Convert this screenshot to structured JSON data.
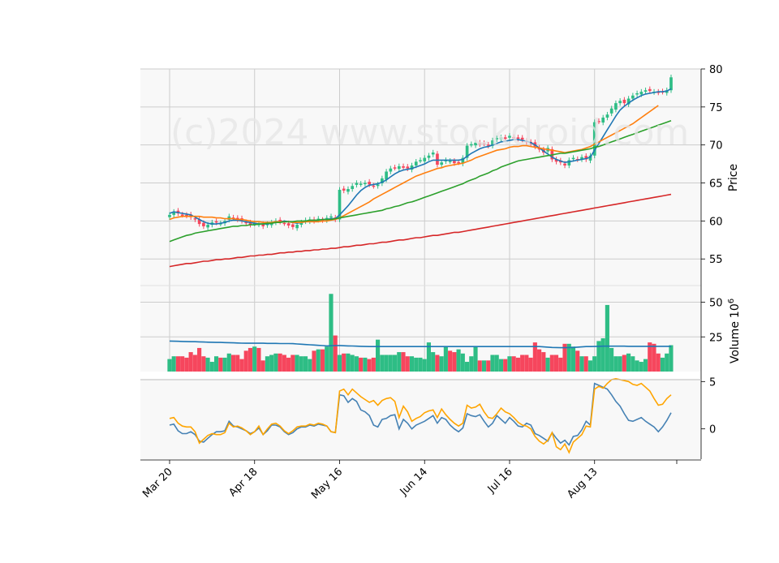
{
  "watermark": "(c)2024 www.stockdroid.com",
  "colors": {
    "up": "#2ebd85",
    "down": "#f6465d",
    "ma1": "#1f77b4",
    "ma2": "#ff7f0e",
    "ma3": "#2ca02c",
    "ma4": "#d62728",
    "macd": "#4682b4",
    "signal": "#ffa500",
    "panel_bg": "#f8f8f8",
    "grid": "#cccccc"
  },
  "chart_data": [
    {
      "type": "candlestick",
      "panel": "price",
      "ylabel": "Price",
      "ylim": [
        51.5,
        80
      ],
      "yticks": [
        55,
        60,
        65,
        70,
        75,
        80
      ],
      "x_tick_labels": [
        {
          "label": "Mar 20",
          "index": 0
        },
        {
          "label": "Apr 18",
          "index": 20
        },
        {
          "label": "May 16",
          "index": 40
        },
        {
          "label": "Jun 14",
          "index": 60
        },
        {
          "label": "Jul 16",
          "index": 80
        },
        {
          "label": "Aug 13",
          "index": 100
        }
      ],
      "grid": true,
      "candles_close": [
        60.8,
        61.2,
        61.0,
        60.8,
        60.7,
        60.5,
        60.2,
        59.6,
        59.3,
        59.5,
        59.8,
        59.8,
        59.7,
        60.0,
        60.6,
        60.4,
        60.2,
        60.0,
        59.8,
        59.5,
        59.7,
        59.6,
        59.3,
        59.6,
        59.8,
        60.0,
        59.9,
        59.7,
        59.4,
        59.2,
        59.5,
        59.8,
        60.1,
        60.2,
        60.0,
        60.3,
        60.1,
        60.4,
        60.6,
        60.2,
        64.1,
        64.0,
        64.2,
        64.6,
        65.0,
        64.9,
        65.0,
        64.8,
        64.6,
        64.8,
        65.6,
        66.5,
        66.9,
        67.0,
        67.2,
        67.0,
        66.9,
        67.3,
        67.8,
        68.0,
        68.3,
        68.6,
        69.0,
        67.4,
        67.7,
        68.0,
        67.9,
        67.6,
        67.7,
        68.3,
        69.9,
        70.1,
        70.3,
        70.1,
        70.2,
        69.9,
        70.6,
        70.9,
        71.0,
        70.8,
        71.2,
        71.0,
        70.8,
        70.7,
        70.4,
        70.2,
        69.8,
        69.4,
        69.0,
        69.6,
        68.1,
        67.8,
        67.7,
        67.3,
        68.0,
        68.3,
        68.1,
        68.4,
        68.1,
        68.6,
        73.0,
        73.1,
        73.6,
        74.0,
        74.8,
        75.5,
        75.8,
        75.5,
        76.1,
        76.5,
        76.8,
        77.0,
        77.2,
        77.1,
        77.0,
        76.9,
        77.0,
        77.2,
        78.9
      ],
      "ma_series": [
        {
          "name": "MA1",
          "values": [
            61.0,
            61.2,
            61.1,
            61.0,
            60.9,
            60.8,
            60.5,
            60.2,
            59.9,
            59.7,
            59.6,
            59.6,
            59.7,
            59.8,
            60.0,
            60.1,
            60.1,
            60.0,
            59.9,
            59.8,
            59.7,
            59.6,
            59.6,
            59.6,
            59.7,
            59.8,
            59.9,
            60.0,
            59.9,
            59.8,
            59.7,
            59.8,
            59.9,
            60.0,
            60.0,
            60.1,
            60.2,
            60.2,
            60.3,
            60.3,
            60.8,
            61.4,
            62.0,
            62.7,
            63.4,
            64.0,
            64.4,
            64.7,
            64.8,
            64.9,
            65.1,
            65.4,
            65.8,
            66.2,
            66.5,
            66.7,
            66.8,
            66.9,
            67.1,
            67.3,
            67.5,
            67.8,
            68.0,
            68.0,
            68.0,
            68.0,
            68.0,
            68.0,
            68.0,
            68.1,
            68.5,
            68.9,
            69.2,
            69.5,
            69.7,
            69.8,
            70.0,
            70.2,
            70.4,
            70.5,
            70.6,
            70.7,
            70.7,
            70.6,
            70.5,
            70.3,
            70.0,
            69.6,
            69.2,
            68.8,
            68.4,
            68.1,
            67.9,
            67.7,
            67.8,
            67.9,
            68.0,
            68.1,
            68.2,
            68.4,
            69.3,
            70.2,
            71.1,
            72.0,
            72.9,
            73.8,
            74.6,
            75.1,
            75.5,
            75.9,
            76.2,
            76.5,
            76.7,
            76.8,
            76.9,
            77.0,
            77.0,
            77.1,
            77.4
          ]
        },
        {
          "name": "MA2",
          "values": [
            60.2,
            60.4,
            60.5,
            60.6,
            60.6,
            60.6,
            60.6,
            60.6,
            60.5,
            60.5,
            60.5,
            60.4,
            60.4,
            60.3,
            60.3,
            60.3,
            60.2,
            60.2,
            60.1,
            60.0,
            59.9,
            59.9,
            59.8,
            59.8,
            59.8,
            59.9,
            59.9,
            59.9,
            59.9,
            59.8,
            59.8,
            59.8,
            59.9,
            59.9,
            59.9,
            59.9,
            60.0,
            60.0,
            60.1,
            60.2,
            60.4,
            60.7,
            61.0,
            61.3,
            61.6,
            61.9,
            62.2,
            62.5,
            62.9,
            63.2,
            63.5,
            63.8,
            64.1,
            64.4,
            64.7,
            65.0,
            65.3,
            65.6,
            65.9,
            66.1,
            66.3,
            66.5,
            66.7,
            66.9,
            67.0,
            67.2,
            67.3,
            67.4,
            67.5,
            67.6,
            67.8,
            68.0,
            68.3,
            68.5,
            68.7,
            68.9,
            69.1,
            69.3,
            69.4,
            69.5,
            69.7,
            69.8,
            69.8,
            69.9,
            69.9,
            69.8,
            69.7,
            69.6,
            69.5,
            69.4,
            69.3,
            69.2,
            69.1,
            69.0,
            69.1,
            69.2,
            69.3,
            69.4,
            69.6,
            69.8,
            70.1,
            70.4,
            70.7,
            71.0,
            71.3,
            71.6,
            71.9,
            72.2,
            72.5,
            72.8,
            73.2,
            73.6,
            74.0,
            74.4,
            74.8,
            75.2
          ]
        },
        {
          "name": "MA3",
          "values": [
            57.3,
            57.5,
            57.7,
            57.9,
            58.1,
            58.2,
            58.4,
            58.5,
            58.6,
            58.7,
            58.8,
            58.9,
            59.0,
            59.1,
            59.2,
            59.3,
            59.3,
            59.4,
            59.4,
            59.5,
            59.5,
            59.6,
            59.6,
            59.7,
            59.7,
            59.8,
            59.8,
            59.9,
            59.9,
            59.9,
            60.0,
            60.0,
            60.0,
            60.1,
            60.1,
            60.1,
            60.2,
            60.2,
            60.2,
            60.3,
            60.4,
            60.5,
            60.6,
            60.7,
            60.8,
            60.9,
            61.0,
            61.1,
            61.2,
            61.3,
            61.4,
            61.6,
            61.7,
            61.9,
            62.0,
            62.2,
            62.4,
            62.5,
            62.7,
            62.9,
            63.1,
            63.3,
            63.5,
            63.7,
            63.9,
            64.1,
            64.3,
            64.5,
            64.7,
            64.9,
            65.2,
            65.4,
            65.6,
            65.9,
            66.1,
            66.3,
            66.6,
            66.8,
            67.1,
            67.3,
            67.5,
            67.7,
            67.9,
            68.0,
            68.1,
            68.2,
            68.3,
            68.4,
            68.5,
            68.6,
            68.7,
            68.8,
            68.9,
            68.9,
            69.0,
            69.1,
            69.2,
            69.3,
            69.4,
            69.5,
            69.7,
            69.8,
            70.0,
            70.2,
            70.4,
            70.6,
            70.8,
            71.0,
            71.2,
            71.4,
            71.6,
            71.8,
            72.0,
            72.2,
            72.4,
            72.6,
            72.8,
            73.0,
            73.2
          ]
        },
        {
          "name": "MA4",
          "values": [
            54.0,
            54.1,
            54.2,
            54.3,
            54.4,
            54.4,
            54.5,
            54.6,
            54.7,
            54.7,
            54.8,
            54.9,
            54.9,
            55.0,
            55.0,
            55.1,
            55.2,
            55.2,
            55.3,
            55.4,
            55.4,
            55.5,
            55.5,
            55.6,
            55.6,
            55.7,
            55.8,
            55.8,
            55.9,
            55.9,
            56.0,
            56.0,
            56.1,
            56.1,
            56.2,
            56.2,
            56.3,
            56.3,
            56.4,
            56.4,
            56.5,
            56.6,
            56.6,
            56.7,
            56.8,
            56.8,
            56.9,
            57.0,
            57.0,
            57.1,
            57.2,
            57.2,
            57.3,
            57.4,
            57.5,
            57.5,
            57.6,
            57.7,
            57.8,
            57.8,
            57.9,
            58.0,
            58.1,
            58.1,
            58.2,
            58.3,
            58.4,
            58.5,
            58.5,
            58.6,
            58.7,
            58.8,
            58.9,
            59.0,
            59.1,
            59.2,
            59.3,
            59.4,
            59.5,
            59.6,
            59.7,
            59.8,
            59.9,
            60.0,
            60.1,
            60.2,
            60.3,
            60.4,
            60.5,
            60.6,
            60.7,
            60.8,
            60.9,
            61.0,
            61.1,
            61.2,
            61.3,
            61.4,
            61.5,
            61.6,
            61.7,
            61.8,
            61.9,
            62.0,
            62.1,
            62.2,
            62.3,
            62.4,
            62.5,
            62.6,
            62.7,
            62.8,
            62.9,
            63.0,
            63.1,
            63.2,
            63.3,
            63.4,
            63.5
          ]
        }
      ]
    },
    {
      "type": "bar",
      "panel": "volume",
      "ylabel": "Volume",
      "ylabel_exponent": "10^6",
      "ylim": [
        0,
        62
      ],
      "yticks": [
        25,
        50
      ],
      "values": [
        9,
        11,
        11,
        11,
        10,
        14,
        12,
        17,
        11,
        10,
        7,
        11,
        10,
        10,
        13,
        12,
        12,
        9,
        15,
        17,
        18,
        17,
        8,
        11,
        12,
        13,
        13,
        12,
        10,
        12,
        12,
        11,
        11,
        9,
        15,
        16,
        16,
        18,
        56,
        26,
        12,
        13,
        13,
        12,
        11,
        10,
        10,
        9,
        10,
        23,
        12,
        12,
        12,
        12,
        14,
        14,
        11,
        11,
        10,
        10,
        9,
        21,
        14,
        12,
        11,
        18,
        15,
        14,
        16,
        13,
        7,
        11,
        18,
        8,
        8,
        8,
        12,
        12,
        9,
        9,
        11,
        11,
        10,
        12,
        12,
        10,
        21,
        16,
        14,
        10,
        12,
        12,
        10,
        20,
        20,
        18,
        15,
        11,
        11,
        8,
        11,
        22,
        24,
        48,
        17,
        11,
        11,
        12,
        13,
        11,
        8,
        7,
        9,
        21,
        20,
        13,
        10,
        13,
        19
      ],
      "ma_values": [
        22.0,
        21.9,
        21.8,
        21.7,
        21.6,
        21.5,
        21.5,
        21.4,
        21.3,
        21.2,
        21.1,
        21.0,
        21.0,
        20.9,
        20.8,
        20.7,
        20.6,
        20.5,
        20.4,
        20.4,
        20.4,
        20.4,
        20.4,
        20.3,
        20.3,
        20.3,
        20.2,
        20.2,
        20.2,
        20.1,
        19.9,
        19.7,
        19.5,
        19.3,
        19.1,
        18.9,
        18.7,
        18.5,
        18.6,
        18.7,
        18.8,
        18.6,
        18.5,
        18.4,
        18.3,
        18.2,
        18.1,
        18.0,
        18.0,
        18.0,
        18.0,
        18.0,
        18.0,
        18.0,
        18.0,
        18.0,
        18.0,
        18.0,
        18.0,
        18.0,
        18.0,
        18.0,
        18.0,
        18.0,
        18.0,
        18.0,
        18.0,
        18.0,
        18.0,
        18.0,
        18.0,
        18.0,
        18.0,
        18.0,
        18.0,
        18.0,
        18.0,
        18.0,
        18.0,
        18.0,
        18.0,
        18.0,
        18.0,
        18.0,
        18.0,
        18.0,
        18.0,
        18.0,
        17.8,
        17.6,
        17.4,
        17.3,
        17.2,
        17.2,
        17.3,
        17.4,
        17.6,
        17.8,
        18.0,
        18.0,
        18.1,
        18.2,
        18.3,
        18.3,
        18.3,
        18.3,
        18.3,
        18.3,
        18.2,
        18.2,
        18.2,
        18.2,
        18.2,
        18.2,
        18.2,
        18.2,
        18.2,
        18.2,
        18.2
      ]
    },
    {
      "type": "line",
      "panel": "oscillator",
      "ylim": [
        -3.2,
        5.2
      ],
      "yticks": [
        0,
        5
      ],
      "series": [
        {
          "values": [
            0.4,
            0.5,
            -0.2,
            -0.5,
            -0.5,
            -0.3,
            -0.6,
            -1.3,
            -1.4,
            -1.0,
            -0.6,
            -0.3,
            -0.3,
            -0.2,
            0.8,
            0.3,
            0.2,
            0.0,
            -0.2,
            -0.5,
            -0.3,
            0.1,
            -0.6,
            -0.2,
            0.4,
            0.4,
            0.2,
            -0.3,
            -0.6,
            -0.4,
            0.0,
            0.2,
            0.2,
            0.4,
            0.3,
            0.5,
            0.4,
            0.3,
            -0.3,
            -0.4,
            3.6,
            3.5,
            2.8,
            3.2,
            2.9,
            2.0,
            1.8,
            1.4,
            0.4,
            0.2,
            1.0,
            1.1,
            1.4,
            1.5,
            0.0,
            1.0,
            0.6,
            0.0,
            0.4,
            0.6,
            0.8,
            1.1,
            1.4,
            0.6,
            1.2,
            1.0,
            0.4,
            0.0,
            -0.3,
            0.1,
            1.6,
            1.4,
            1.3,
            1.5,
            0.8,
            0.2,
            0.6,
            1.4,
            1.0,
            0.6,
            1.2,
            0.8,
            0.3,
            0.2,
            0.6,
            0.4,
            -0.5,
            -0.7,
            -1.0,
            -1.3,
            -0.4,
            -1.0,
            -1.5,
            -1.2,
            -1.7,
            -0.8,
            -0.7,
            -0.1,
            0.8,
            0.4,
            4.8,
            4.6,
            4.4,
            4.2,
            3.6,
            2.9,
            2.4,
            1.6,
            0.9,
            0.8,
            1.0,
            1.2,
            0.8,
            0.5,
            0.2,
            -0.3,
            0.2,
            0.9,
            1.7
          ]
        },
        {
          "values": [
            1.1,
            1.2,
            0.6,
            0.3,
            0.2,
            0.2,
            -0.3,
            -1.5,
            -1.1,
            -0.7,
            -0.5,
            -0.6,
            -0.6,
            -0.4,
            0.6,
            0.2,
            0.3,
            0.1,
            -0.2,
            -0.6,
            -0.3,
            0.3,
            -0.6,
            0.0,
            0.5,
            0.6,
            0.3,
            -0.2,
            -0.5,
            -0.2,
            0.2,
            0.3,
            0.3,
            0.5,
            0.4,
            0.6,
            0.5,
            0.3,
            -0.3,
            -0.4,
            4.0,
            4.2,
            3.6,
            4.2,
            3.8,
            3.4,
            3.1,
            2.8,
            3.0,
            2.5,
            3.0,
            3.2,
            3.3,
            2.9,
            1.2,
            2.4,
            1.8,
            0.8,
            1.1,
            1.3,
            1.7,
            1.9,
            2.0,
            1.2,
            2.1,
            1.5,
            1.0,
            0.6,
            0.3,
            0.6,
            2.5,
            2.2,
            2.3,
            2.6,
            1.8,
            1.2,
            1.1,
            1.6,
            2.2,
            1.8,
            1.6,
            1.2,
            0.7,
            0.4,
            0.3,
            0.0,
            -0.8,
            -1.3,
            -1.6,
            -1.2,
            -0.4,
            -1.9,
            -2.2,
            -1.6,
            -2.5,
            -1.4,
            -1.0,
            -0.6,
            0.3,
            0.2,
            4.2,
            4.5,
            4.3,
            4.8,
            5.2,
            5.3,
            5.2,
            5.1,
            5.0,
            4.7,
            4.6,
            4.8,
            4.4,
            4.0,
            3.2,
            2.5,
            2.6,
            3.2,
            3.6
          ]
        }
      ]
    }
  ]
}
